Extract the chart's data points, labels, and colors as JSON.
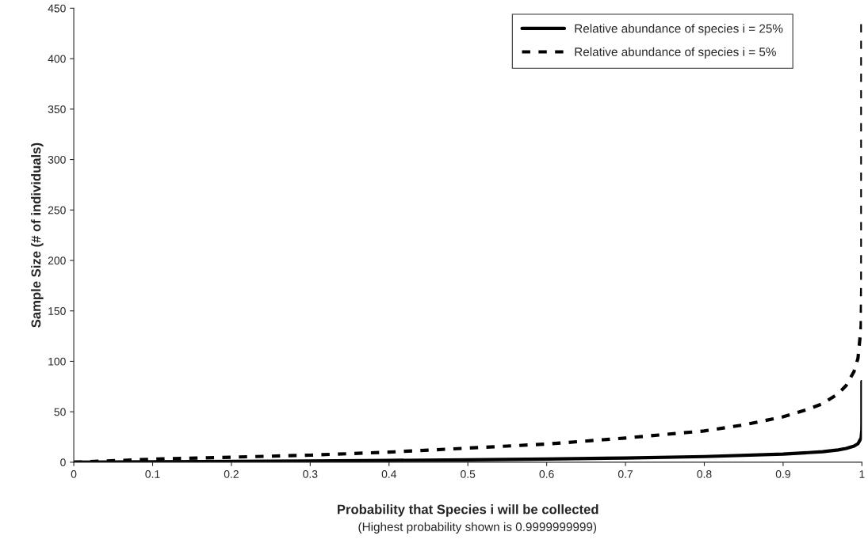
{
  "chart_data": {
    "type": "line",
    "xlabel": "Probability that Species i will be collected",
    "annotations": [
      "(Highest probability shown is 0.9999999999)"
    ],
    "ylabel": "Sample Size (# of individuals)",
    "xlim": [
      0,
      1
    ],
    "ylim": [
      0,
      450
    ],
    "xticks": [
      0,
      0.1,
      0.2,
      0.3,
      0.4,
      0.5,
      0.6,
      0.7,
      0.8,
      0.9,
      1
    ],
    "yticks": [
      0,
      50,
      100,
      150,
      200,
      250,
      300,
      350,
      400,
      450
    ],
    "grid": false,
    "legend": "top right",
    "series": [
      {
        "name": "Relative abundance of species i = 25%",
        "color": "#000000",
        "line_style": "solid",
        "x": [
          0,
          0.1,
          0.2,
          0.3,
          0.4,
          0.5,
          0.6,
          0.7,
          0.8,
          0.9,
          0.95,
          0.97,
          0.98,
          0.99,
          0.995,
          0.999,
          0.9999,
          0.99999,
          0.999999,
          0.9999999,
          0.99999999,
          0.999999999,
          0.9999999999
        ],
        "values": [
          0,
          0.4,
          0.8,
          1.2,
          1.8,
          2.4,
          3.2,
          4.2,
          5.6,
          8,
          10.4,
          12.2,
          13.6,
          16,
          18.4,
          24,
          32,
          40,
          48,
          56,
          64,
          72,
          80
        ]
      },
      {
        "name": "Relative abundance of species i = 5%",
        "color": "#000000",
        "line_style": "dashed",
        "x": [
          0,
          0.1,
          0.2,
          0.3,
          0.4,
          0.5,
          0.6,
          0.7,
          0.8,
          0.85,
          0.9,
          0.93,
          0.95,
          0.97,
          0.98,
          0.99,
          0.995,
          0.999,
          0.9999,
          0.99999,
          0.999999,
          0.9999999,
          0.99999999,
          0.999999999,
          0.9999999999
        ],
        "values": [
          0,
          3,
          5,
          7,
          10,
          14,
          18,
          24,
          31,
          37,
          45,
          52,
          58,
          68,
          76,
          90,
          103,
          135,
          180,
          224,
          270,
          314,
          359,
          404,
          440
        ]
      }
    ]
  }
}
